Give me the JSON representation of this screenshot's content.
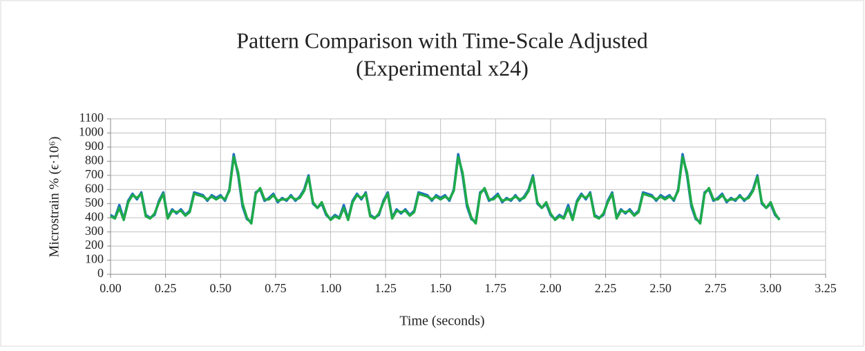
{
  "chart_data": {
    "type": "line",
    "title": "Pattern Comparison with Time-Scale Adjusted",
    "subtitle": "(Experimental x24)",
    "xlabel": "Time (seconds)",
    "ylabel": "Microstrain % (ϵ·10⁶)",
    "x": [
      0,
      0.02,
      0.04,
      0.06,
      0.08,
      0.1,
      0.12,
      0.14,
      0.16,
      0.18,
      0.2,
      0.22,
      0.24,
      0.26,
      0.28,
      0.3,
      0.32,
      0.34,
      0.36,
      0.38,
      0.4,
      0.42,
      0.44,
      0.46,
      0.48,
      0.5,
      0.52,
      0.54,
      0.56,
      0.58,
      0.6,
      0.62,
      0.64,
      0.66,
      0.68,
      0.7,
      0.72,
      0.74,
      0.76,
      0.78,
      0.8,
      0.82,
      0.84,
      0.86,
      0.88,
      0.9,
      0.92,
      0.94,
      0.96,
      0.98,
      1,
      1.02,
      1.04,
      1.06,
      1.08,
      1.1,
      1.12,
      1.14,
      1.16,
      1.18,
      1.2,
      1.22,
      1.24,
      1.26,
      1.28,
      1.3,
      1.32,
      1.34,
      1.36,
      1.38,
      1.4,
      1.42,
      1.44,
      1.46,
      1.48,
      1.5,
      1.52,
      1.54,
      1.56,
      1.58,
      1.6,
      1.62,
      1.64,
      1.66,
      1.68,
      1.7,
      1.72,
      1.74,
      1.76,
      1.78,
      1.8,
      1.82,
      1.84,
      1.86,
      1.88,
      1.9,
      1.92,
      1.94,
      1.96,
      1.98,
      2,
      2.02,
      2.04,
      2.06,
      2.08,
      2.1,
      2.12,
      2.14,
      2.16,
      2.18,
      2.2,
      2.22,
      2.24,
      2.26,
      2.28,
      2.3,
      2.32,
      2.34,
      2.36,
      2.38,
      2.4,
      2.42,
      2.44,
      2.46,
      2.48,
      2.5,
      2.52,
      2.54,
      2.56,
      2.58,
      2.6,
      2.62,
      2.64,
      2.66,
      2.68,
      2.7,
      2.72,
      2.74,
      2.76,
      2.78,
      2.8,
      2.82,
      2.84,
      2.86,
      2.88,
      2.9,
      2.92,
      2.94,
      2.96,
      2.98,
      3,
      3.02,
      3.04
    ],
    "series": [
      {
        "color": "#1f6fbf",
        "values": [
          420,
          400,
          490,
          390,
          520,
          570,
          530,
          580,
          420,
          400,
          420,
          520,
          580,
          400,
          460,
          430,
          460,
          420,
          450,
          580,
          570,
          560,
          520,
          560,
          540,
          560,
          520,
          600,
          850,
          700,
          480,
          390,
          370,
          580,
          600,
          520,
          540,
          570,
          510,
          540,
          520,
          560,
          520,
          550,
          600,
          700,
          500,
          470,
          500,
          420,
          390,
          420,
          400,
          490,
          390,
          520,
          570,
          530,
          580,
          420,
          400,
          420,
          520,
          580,
          400,
          460,
          430,
          460,
          420,
          450,
          580,
          570,
          560,
          520,
          560,
          540,
          560,
          520,
          600,
          850,
          700,
          480,
          390,
          370,
          580,
          600,
          520,
          540,
          570,
          510,
          540,
          520,
          560,
          520,
          550,
          600,
          700,
          500,
          470,
          500,
          420,
          390,
          420,
          400,
          490,
          390,
          520,
          570,
          530,
          580,
          420,
          400,
          420,
          520,
          580,
          400,
          460,
          430,
          460,
          420,
          450,
          580,
          570,
          560,
          520,
          560,
          540,
          560,
          520,
          600,
          850,
          700,
          480,
          390,
          370,
          580,
          600,
          520,
          540,
          570,
          510,
          540,
          520,
          560,
          520,
          550,
          600,
          700,
          500,
          470,
          500,
          420,
          390
        ]
      },
      {
        "color": "#1faa4a",
        "values": [
          410,
          395,
          470,
          385,
          510,
          560,
          540,
          570,
          410,
          395,
          430,
          510,
          570,
          395,
          450,
          440,
          450,
          415,
          440,
          570,
          560,
          550,
          530,
          550,
          530,
          550,
          530,
          590,
          830,
          720,
          500,
          400,
          360,
          570,
          610,
          530,
          530,
          560,
          520,
          530,
          530,
          550,
          530,
          540,
          590,
          690,
          510,
          470,
          510,
          430,
          385,
          410,
          395,
          470,
          385,
          510,
          560,
          540,
          570,
          410,
          395,
          430,
          510,
          570,
          395,
          450,
          440,
          450,
          415,
          440,
          570,
          560,
          550,
          530,
          550,
          530,
          550,
          530,
          590,
          830,
          720,
          500,
          400,
          360,
          570,
          610,
          530,
          530,
          560,
          520,
          530,
          530,
          550,
          530,
          540,
          590,
          690,
          510,
          470,
          510,
          430,
          385,
          410,
          395,
          470,
          385,
          510,
          560,
          540,
          570,
          410,
          395,
          430,
          510,
          570,
          395,
          450,
          440,
          450,
          415,
          440,
          570,
          560,
          550,
          530,
          550,
          530,
          550,
          530,
          590,
          830,
          720,
          500,
          400,
          360,
          570,
          610,
          530,
          530,
          560,
          520,
          530,
          530,
          550,
          530,
          540,
          590,
          690,
          510,
          470,
          510,
          430,
          385
        ]
      }
    ],
    "xlim": [
      0,
      3.25
    ],
    "xticks": [
      {
        "value": 0,
        "label": "0.00"
      },
      {
        "value": 0.25,
        "label": "0.25"
      },
      {
        "value": 0.5,
        "label": "0.50"
      },
      {
        "value": 0.75,
        "label": "0.75"
      },
      {
        "value": 1,
        "label": "1.00"
      },
      {
        "value": 1.25,
        "label": "1.25"
      },
      {
        "value": 1.5,
        "label": "1.50"
      },
      {
        "value": 1.75,
        "label": "1.75"
      },
      {
        "value": 2,
        "label": "2.00"
      },
      {
        "value": 2.25,
        "label": "2.25"
      },
      {
        "value": 2.5,
        "label": "2.50"
      },
      {
        "value": 2.75,
        "label": "2.75"
      },
      {
        "value": 3,
        "label": "3.00"
      },
      {
        "value": 3.25,
        "label": "3.25"
      }
    ],
    "ylim": [
      0,
      1100
    ],
    "yticks": [
      0,
      100,
      200,
      300,
      400,
      500,
      600,
      700,
      800,
      900,
      1000,
      1100
    ],
    "grid": true
  }
}
